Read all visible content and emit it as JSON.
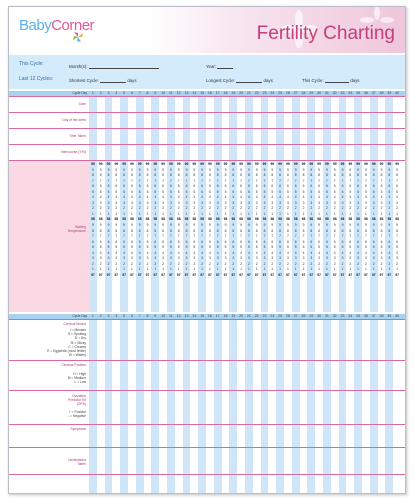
{
  "brand": {
    "baby": "Baby",
    "corner": "Corner"
  },
  "title": "Fertility Charting",
  "info": {
    "this_cycle": "This Cycle:",
    "last_12": "Last 12 Cycles:",
    "month_label": "Month(s):",
    "year_label": "Year:",
    "shortest_label": "Shortest Cycle:",
    "days": "days",
    "longest_label": "Longest Cycle:",
    "this_cycle_len": "This Cycle:"
  },
  "cycle_day_label": "Cycle Day",
  "days": [
    1,
    2,
    3,
    4,
    5,
    6,
    7,
    8,
    9,
    10,
    11,
    12,
    13,
    14,
    15,
    16,
    17,
    18,
    19,
    20,
    21,
    22,
    23,
    24,
    25,
    26,
    27,
    28,
    29,
    30,
    31,
    32,
    33,
    34,
    35,
    36,
    37,
    38,
    39,
    40
  ],
  "top_rows": {
    "date": "Date",
    "day_of_week": "Day of the week",
    "time_taken": "Time Taken",
    "intercourse": "Intercourse (Y/N)"
  },
  "waking_temp_label": [
    "Waking",
    "Temperature"
  ],
  "temperatures": [
    "99",
    "9",
    "8",
    "7",
    "6",
    "5",
    "4",
    "3",
    "2",
    "1",
    "98",
    "9",
    "8",
    "7",
    "6",
    "5",
    "4",
    "3",
    "2",
    "1",
    "97"
  ],
  "bottom": {
    "cervical_mucus": "Cervical Mucus",
    "mucus_key": [
      "I = Menses",
      "S = Spotting",
      "D = Dry",
      "St = Sticky",
      "C = Creamy",
      "E = Eggwhite (most fertile)",
      "W = Watery"
    ],
    "cervical_position": "Cervical Position",
    "position_key": [
      "H = High",
      "M = Medium",
      "L = Low"
    ],
    "opk": [
      "Ovulation",
      "Predictor Kit",
      "(OPK)"
    ],
    "opk_key": [
      "+ = Positive",
      "- = Negative"
    ],
    "symptoms": "Symptoms",
    "medications": [
      "Medications",
      "Taken"
    ]
  },
  "colors": {
    "pink": "#c2407d",
    "blue": "#58b4e6",
    "band_blue": "#d3ebfb",
    "header_blue": "#a8d2f2",
    "column_blue": "#cfe6f8",
    "pink_line": "#d96aa1",
    "pink_band": "#fbd9e4"
  }
}
